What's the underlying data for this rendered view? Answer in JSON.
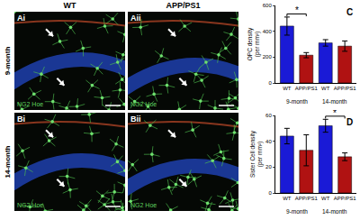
{
  "figure": {
    "columns": [
      "WT",
      "APP/PS1"
    ],
    "rows": [
      "9-month",
      "14-month"
    ],
    "panels": [
      [
        "Ai",
        "Aii"
      ],
      [
        "Bi",
        "Bii"
      ]
    ],
    "stain_label": "NG2 Hoe"
  },
  "chart_data": [
    {
      "panel": "C",
      "type": "bar",
      "ylabel": "OPC density\n(per mm²)",
      "categories": [
        "WT",
        "APP/PS1",
        "WT",
        "APP/PS1"
      ],
      "group_labels": [
        "9-month",
        "14-month"
      ],
      "values": [
        440,
        215,
        310,
        285
      ],
      "errors": [
        70,
        20,
        25,
        40
      ],
      "colors": [
        "#1a1ad6",
        "#b01212",
        "#1a1ad6",
        "#b01212"
      ],
      "ylim": [
        0,
        600
      ],
      "yticks": [
        0,
        200,
        400,
        600
      ],
      "significance": [
        {
          "between": [
            0,
            1
          ],
          "label": "*"
        }
      ]
    },
    {
      "panel": "D",
      "type": "bar",
      "ylabel": "Sister Cell density\n(per mm²)",
      "categories": [
        "WT",
        "APP/PS1",
        "WT",
        "APP/PS1"
      ],
      "group_labels": [
        "9-month",
        "14-month"
      ],
      "values": [
        44,
        33,
        52,
        28
      ],
      "errors": [
        6,
        12,
        5,
        3
      ],
      "colors": [
        "#1a1ad6",
        "#b01212",
        "#1a1ad6",
        "#b01212"
      ],
      "ylim": [
        0,
        60
      ],
      "yticks": [
        0,
        20,
        40,
        60
      ],
      "significance": [
        {
          "between": [
            2,
            3
          ],
          "label": "*"
        }
      ]
    }
  ]
}
